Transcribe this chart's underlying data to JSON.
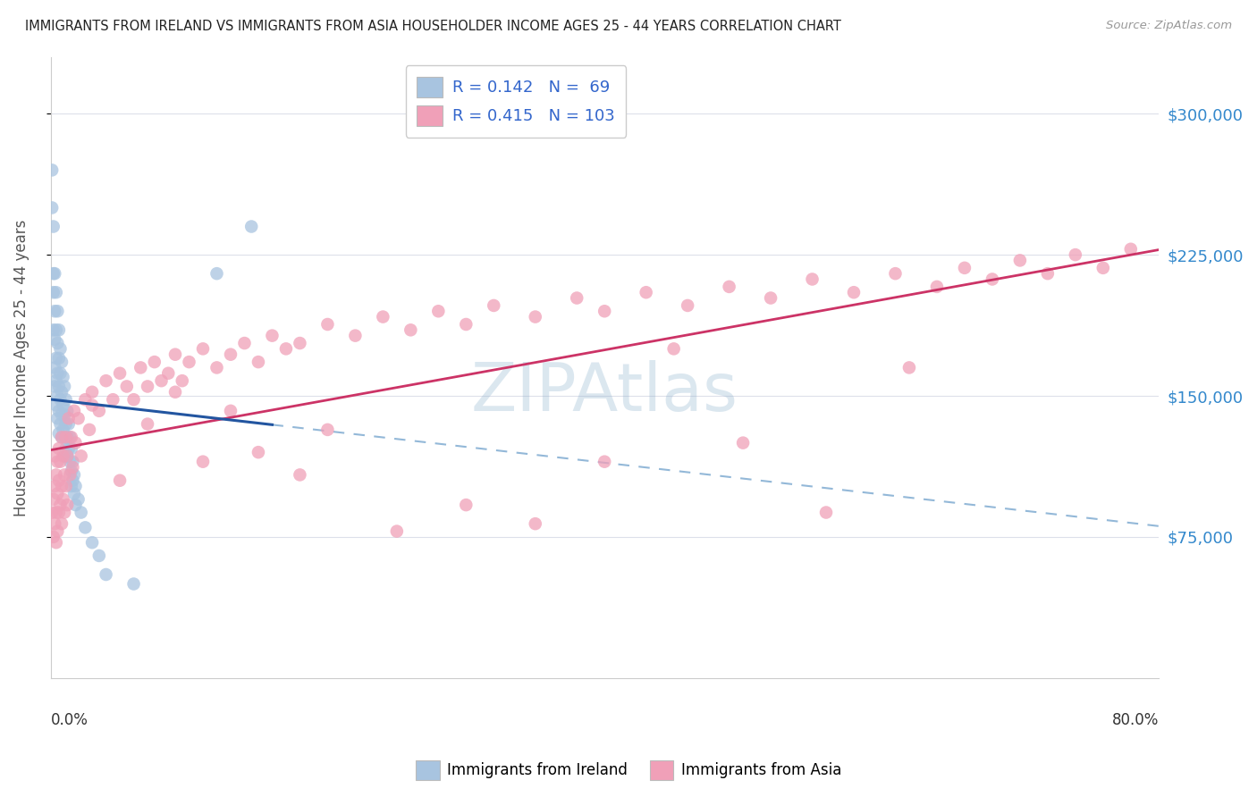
{
  "title": "IMMIGRANTS FROM IRELAND VS IMMIGRANTS FROM ASIA HOUSEHOLDER INCOME AGES 25 - 44 YEARS CORRELATION CHART",
  "source": "Source: ZipAtlas.com",
  "ylabel": "Householder Income Ages 25 - 44 years",
  "ytick_values": [
    75000,
    150000,
    225000,
    300000
  ],
  "ireland_R": 0.142,
  "ireland_N": 69,
  "asia_R": 0.415,
  "asia_N": 103,
  "ireland_color": "#a8c4e0",
  "ireland_line_color": "#2255a0",
  "ireland_dash_color": "#93b8d8",
  "asia_color": "#f0a0b8",
  "asia_line_color": "#cc3366",
  "legend_text_color": "#3366cc",
  "watermark_color": "#8ab0cc",
  "background_color": "#ffffff",
  "grid_color": "#dde0ea",
  "title_color": "#222222",
  "right_label_color": "#3388cc",
  "xmin": 0.0,
  "xmax": 0.8,
  "ymin": 0,
  "ymax": 330000,
  "figsize": [
    14.06,
    8.92
  ],
  "dpi": 100,
  "ireland_x": [
    0.001,
    0.001,
    0.002,
    0.002,
    0.002,
    0.002,
    0.003,
    0.003,
    0.003,
    0.003,
    0.003,
    0.004,
    0.004,
    0.004,
    0.004,
    0.004,
    0.005,
    0.005,
    0.005,
    0.005,
    0.005,
    0.006,
    0.006,
    0.006,
    0.006,
    0.006,
    0.007,
    0.007,
    0.007,
    0.007,
    0.008,
    0.008,
    0.008,
    0.008,
    0.009,
    0.009,
    0.009,
    0.01,
    0.01,
    0.01,
    0.01,
    0.011,
    0.011,
    0.011,
    0.012,
    0.012,
    0.012,
    0.013,
    0.013,
    0.014,
    0.014,
    0.015,
    0.015,
    0.015,
    0.016,
    0.016,
    0.017,
    0.017,
    0.018,
    0.018,
    0.02,
    0.022,
    0.025,
    0.03,
    0.035,
    0.04,
    0.06,
    0.12,
    0.145
  ],
  "ireland_y": [
    270000,
    250000,
    240000,
    215000,
    205000,
    185000,
    215000,
    195000,
    180000,
    165000,
    155000,
    205000,
    185000,
    170000,
    158000,
    145000,
    195000,
    178000,
    162000,
    150000,
    138000,
    185000,
    170000,
    155000,
    142000,
    130000,
    175000,
    162000,
    148000,
    135000,
    168000,
    152000,
    140000,
    128000,
    160000,
    145000,
    132000,
    155000,
    140000,
    128000,
    118000,
    148000,
    135000,
    122000,
    142000,
    128000,
    118000,
    135000,
    122000,
    128000,
    115000,
    122000,
    110000,
    102000,
    115000,
    105000,
    108000,
    98000,
    102000,
    92000,
    95000,
    88000,
    80000,
    72000,
    65000,
    55000,
    50000,
    215000,
    240000
  ],
  "asia_x": [
    0.001,
    0.002,
    0.002,
    0.003,
    0.003,
    0.003,
    0.004,
    0.004,
    0.004,
    0.005,
    0.005,
    0.005,
    0.006,
    0.006,
    0.006,
    0.007,
    0.007,
    0.008,
    0.008,
    0.008,
    0.009,
    0.009,
    0.01,
    0.01,
    0.011,
    0.011,
    0.012,
    0.012,
    0.013,
    0.014,
    0.015,
    0.016,
    0.017,
    0.018,
    0.02,
    0.022,
    0.025,
    0.028,
    0.03,
    0.035,
    0.04,
    0.045,
    0.05,
    0.055,
    0.06,
    0.065,
    0.07,
    0.075,
    0.08,
    0.085,
    0.09,
    0.095,
    0.1,
    0.11,
    0.12,
    0.13,
    0.14,
    0.15,
    0.16,
    0.17,
    0.18,
    0.2,
    0.22,
    0.24,
    0.26,
    0.28,
    0.3,
    0.32,
    0.35,
    0.38,
    0.4,
    0.43,
    0.46,
    0.49,
    0.52,
    0.55,
    0.58,
    0.61,
    0.64,
    0.66,
    0.68,
    0.7,
    0.72,
    0.74,
    0.76,
    0.78,
    0.03,
    0.05,
    0.07,
    0.09,
    0.11,
    0.13,
    0.15,
    0.18,
    0.2,
    0.25,
    0.3,
    0.35,
    0.4,
    0.45,
    0.5,
    0.56,
    0.62
  ],
  "asia_y": [
    88000,
    95000,
    75000,
    102000,
    82000,
    118000,
    88000,
    108000,
    72000,
    98000,
    115000,
    78000,
    105000,
    88000,
    122000,
    92000,
    115000,
    102000,
    82000,
    128000,
    95000,
    118000,
    108000,
    88000,
    128000,
    102000,
    118000,
    92000,
    138000,
    108000,
    128000,
    112000,
    142000,
    125000,
    138000,
    118000,
    148000,
    132000,
    152000,
    142000,
    158000,
    148000,
    162000,
    155000,
    148000,
    165000,
    155000,
    168000,
    158000,
    162000,
    172000,
    158000,
    168000,
    175000,
    165000,
    172000,
    178000,
    168000,
    182000,
    175000,
    178000,
    188000,
    182000,
    192000,
    185000,
    195000,
    188000,
    198000,
    192000,
    202000,
    195000,
    205000,
    198000,
    208000,
    202000,
    212000,
    205000,
    215000,
    208000,
    218000,
    212000,
    222000,
    215000,
    225000,
    218000,
    228000,
    145000,
    105000,
    135000,
    152000,
    115000,
    142000,
    120000,
    108000,
    132000,
    78000,
    92000,
    82000,
    115000,
    175000,
    125000,
    88000,
    165000
  ]
}
